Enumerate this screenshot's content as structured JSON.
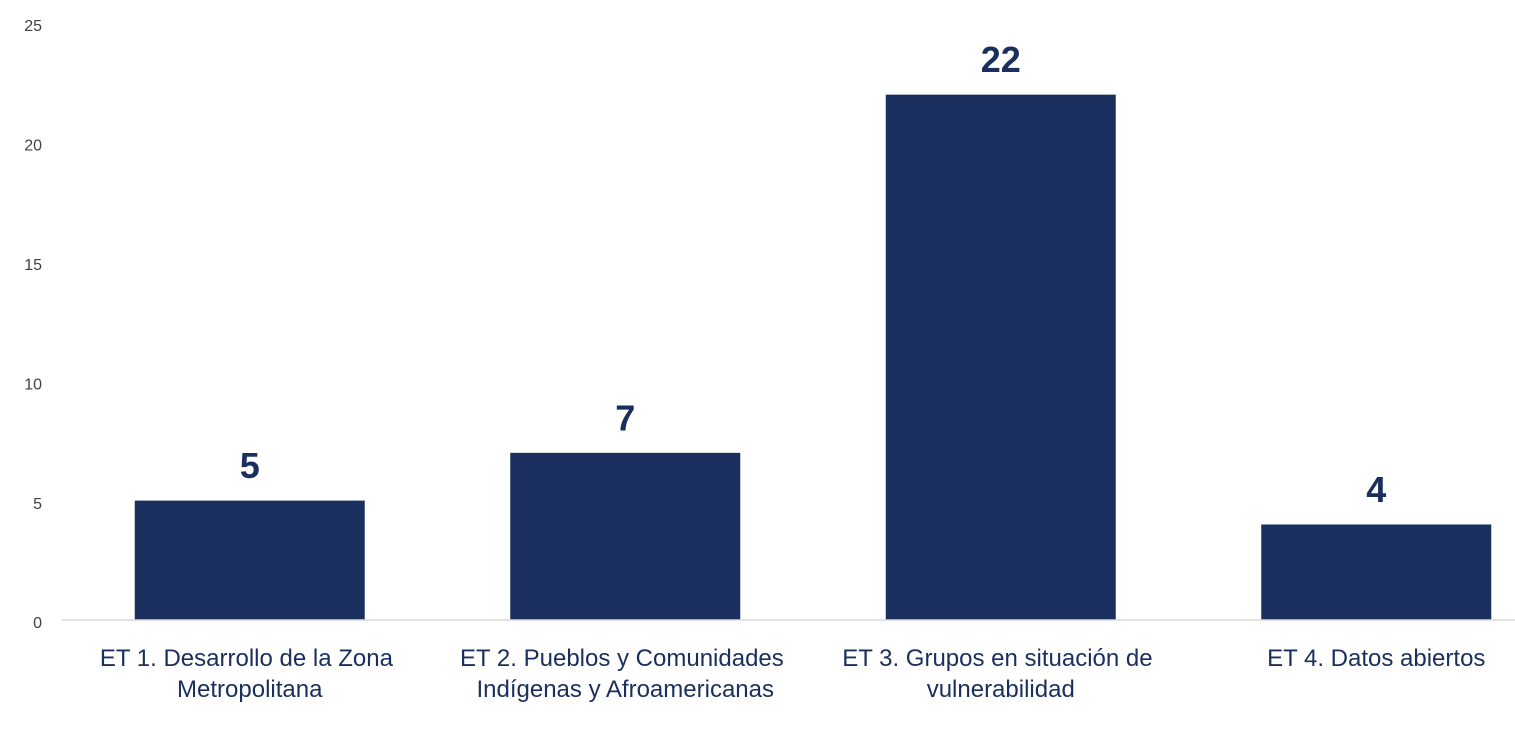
{
  "chart_data": {
    "type": "bar",
    "categories": [
      "ET 1. Desarrollo de la Zona Metropolitana",
      "ET 2. Pueblos y Comunidades Indígenas y Afroamericanas",
      "ET 3. Grupos en situación de vulnerabilidad",
      "ET 4. Datos abiertos"
    ],
    "values": [
      5,
      7,
      22,
      4
    ],
    "color": "#1a2f5e",
    "ylim": [
      0,
      25
    ],
    "yticks": [
      0,
      5,
      10,
      15,
      20,
      25
    ],
    "grid": false
  }
}
